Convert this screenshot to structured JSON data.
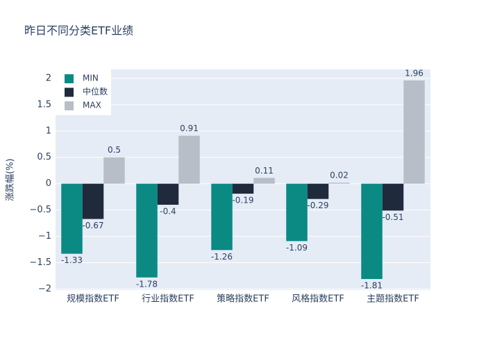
{
  "chart_data": {
    "type": "bar",
    "title": "昨日不同分类ETF业绩",
    "y_label": "涨跌幅(%)",
    "categories": [
      "规模指数ETF",
      "行业指数ETF",
      "策略指数ETF",
      "风格指数ETF",
      "主题指数ETF"
    ],
    "series": [
      {
        "name": "MIN",
        "color": "#0b8a84",
        "values": [
          -1.33,
          -1.78,
          -1.26,
          -1.09,
          -1.81
        ]
      },
      {
        "name": "中位数",
        "color": "#1f2a3c",
        "values": [
          -0.67,
          -0.4,
          -0.19,
          -0.29,
          -0.51
        ]
      },
      {
        "name": "MAX",
        "color": "#b8bec7",
        "values": [
          0.5,
          0.91,
          0.11,
          0.02,
          1.96
        ]
      }
    ],
    "ylim": [
      -2.02,
      2.17
    ],
    "yticks": [
      {
        "value": -2,
        "label": "−2"
      },
      {
        "value": -1.5,
        "label": "−1.5"
      },
      {
        "value": -1,
        "label": "−1"
      },
      {
        "value": -0.5,
        "label": "−0.5"
      },
      0,
      0.5,
      1,
      1.5,
      2
    ],
    "grid": true,
    "legend": "top-left"
  }
}
